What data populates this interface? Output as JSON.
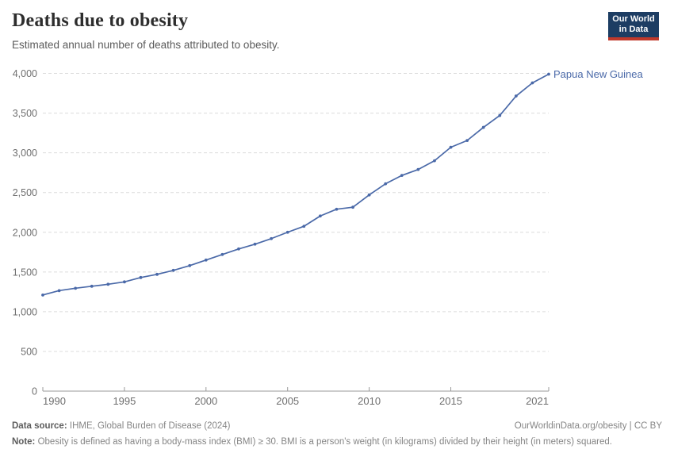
{
  "header": {
    "title": "Deaths due to obesity",
    "subtitle": "Estimated annual number of deaths attributed to obesity.",
    "logo": {
      "line1": "Our World",
      "line2": "in Data",
      "bg_color": "#1d3d63",
      "accent_color": "#c0392b"
    }
  },
  "chart_data": {
    "type": "line",
    "title": "Deaths due to obesity",
    "subtitle": "Estimated annual number of deaths attributed to obesity.",
    "x": [
      1990,
      1991,
      1992,
      1993,
      1994,
      1995,
      1996,
      1997,
      1998,
      1999,
      2000,
      2001,
      2002,
      2003,
      2004,
      2005,
      2006,
      2007,
      2008,
      2009,
      2010,
      2011,
      2012,
      2013,
      2014,
      2015,
      2016,
      2017,
      2018,
      2019,
      2020,
      2021
    ],
    "series": [
      {
        "name": "Papua New Guinea",
        "color": "#4a69a8",
        "values": [
          1210,
          1265,
          1295,
          1320,
          1345,
          1375,
          1430,
          1470,
          1520,
          1580,
          1650,
          1720,
          1790,
          1850,
          1920,
          2000,
          2075,
          2205,
          2290,
          2315,
          2470,
          2610,
          2715,
          2790,
          2900,
          3070,
          3155,
          3320,
          3470,
          3715,
          3880,
          3990
        ]
      }
    ],
    "xlabel": "",
    "ylabel": "",
    "xlim": [
      1990,
      2021
    ],
    "ylim": [
      0,
      4000
    ],
    "xticks": [
      1990,
      1995,
      2000,
      2005,
      2010,
      2015,
      2021
    ],
    "yticks": [
      0,
      500,
      1000,
      1500,
      2000,
      2500,
      3000,
      3500,
      4000
    ],
    "grid": "horizontal-dashed",
    "legend_position": "end-of-line-label",
    "entity_label": "Papua New Guinea",
    "colors": {
      "grid": "#dcdcdc",
      "axis": "#999999",
      "tick_text": "#6e6e6e"
    }
  },
  "footer": {
    "source_label": "Data source:",
    "source_text": "IHME, Global Burden of Disease (2024)",
    "link": "OurWorldinData.org/obesity | CC BY",
    "note_label": "Note:",
    "note_text": "Obesity is defined as having a body-mass index (BMI) ≥ 30. BMI is a person's weight (in kilograms) divided by their height (in meters) squared."
  }
}
